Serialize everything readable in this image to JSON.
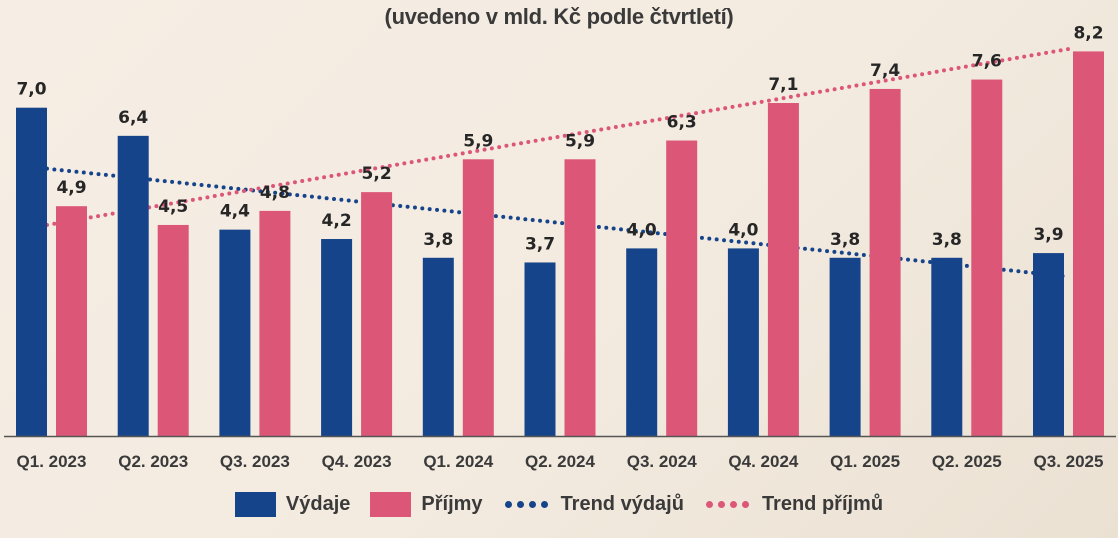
{
  "chart_data": {
    "type": "bar",
    "title": "",
    "subtitle": "(uvedeno v mld. Kč podle čtvrtletí)",
    "xlabel": "",
    "ylabel": "",
    "ylim": [
      0,
      8.2
    ],
    "grid": false,
    "categories": [
      "Q1. 2023",
      "Q2. 2023",
      "Q3. 2023",
      "Q4. 2023",
      "Q1. 2024",
      "Q2. 2024",
      "Q3. 2024",
      "Q4. 2024",
      "Q1. 2025",
      "Q2. 2025",
      "Q3. 2025"
    ],
    "series": [
      {
        "name": "Výdaje",
        "kind": "bar",
        "color": "#16448a",
        "values": [
          7.0,
          6.4,
          4.4,
          4.2,
          3.8,
          3.7,
          4.0,
          4.0,
          3.8,
          3.8,
          3.9
        ],
        "labels": [
          "7,0",
          "6,4",
          "4,4",
          "4,2",
          "3,8",
          "3,7",
          "4,0",
          "4,0",
          "3,8",
          "3,8",
          "3,9"
        ]
      },
      {
        "name": "Příjmy",
        "kind": "bar",
        "color": "#dc5677",
        "values": [
          4.9,
          4.5,
          4.8,
          5.2,
          5.9,
          5.9,
          6.3,
          7.1,
          7.4,
          7.6,
          8.2
        ],
        "labels": [
          "4,9",
          "4,5",
          "4,8",
          "5,2",
          "5,9",
          "5,9",
          "6,3",
          "7,1",
          "7,4",
          "7,6",
          "8,2"
        ]
      },
      {
        "name": "Trend výdajů",
        "kind": "trend-dotted",
        "color": "#16448a",
        "start": 5.7,
        "end": 3.4
      },
      {
        "name": "Trend příjmů",
        "kind": "trend-dotted",
        "color": "#dc5677",
        "start": 4.5,
        "end": 8.25
      }
    ],
    "legend_position": "bottom-center"
  }
}
